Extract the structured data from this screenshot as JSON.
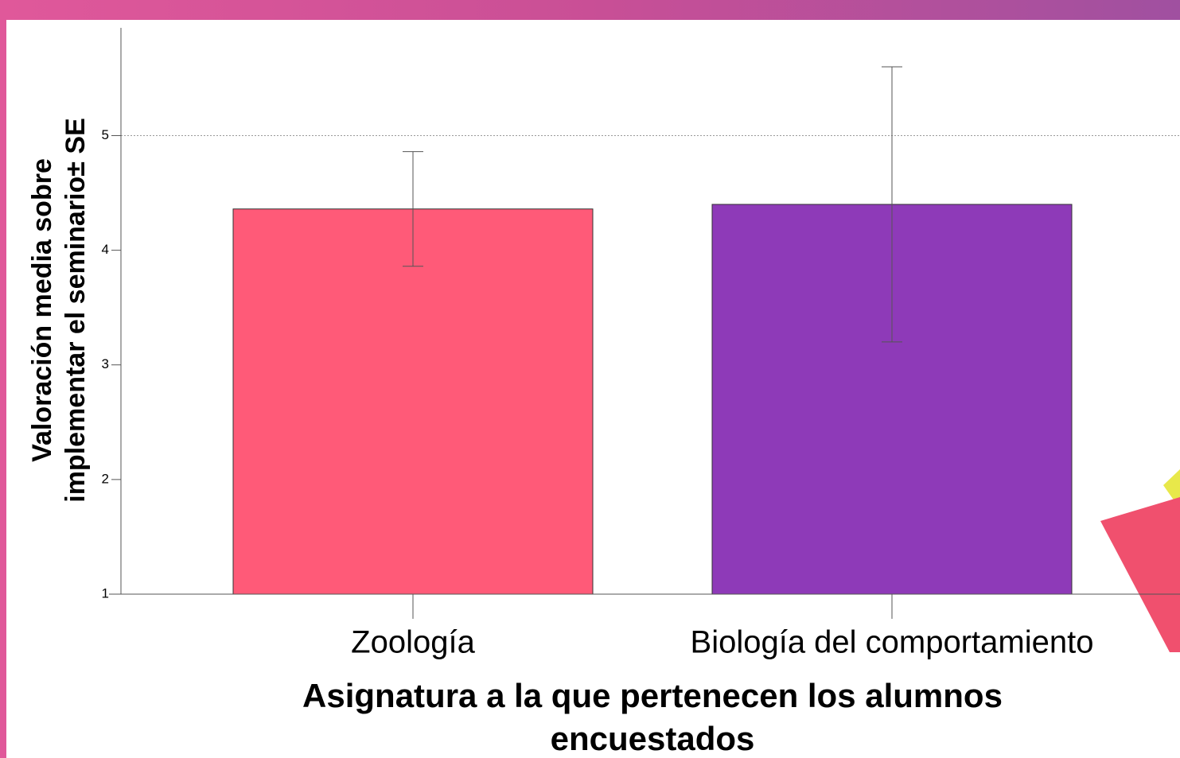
{
  "chart_data": {
    "type": "bar",
    "y_label": [
      "Valoración media sobre",
      "implementar el seminario± SE"
    ],
    "x_label": [
      "Asignatura a la que pertenecen los alumnos",
      "encuestados"
    ],
    "categories": [
      "Zoología",
      "Biología del comportamiento"
    ],
    "values": [
      4.36,
      4.4
    ],
    "errors": [
      0.5,
      1.2
    ],
    "colors": [
      "#ff5a78",
      "#8e3ab8"
    ],
    "ylim": [
      1,
      5.94
    ],
    "yticks": [
      1,
      2,
      3,
      4,
      5
    ],
    "reference_line": 5
  }
}
